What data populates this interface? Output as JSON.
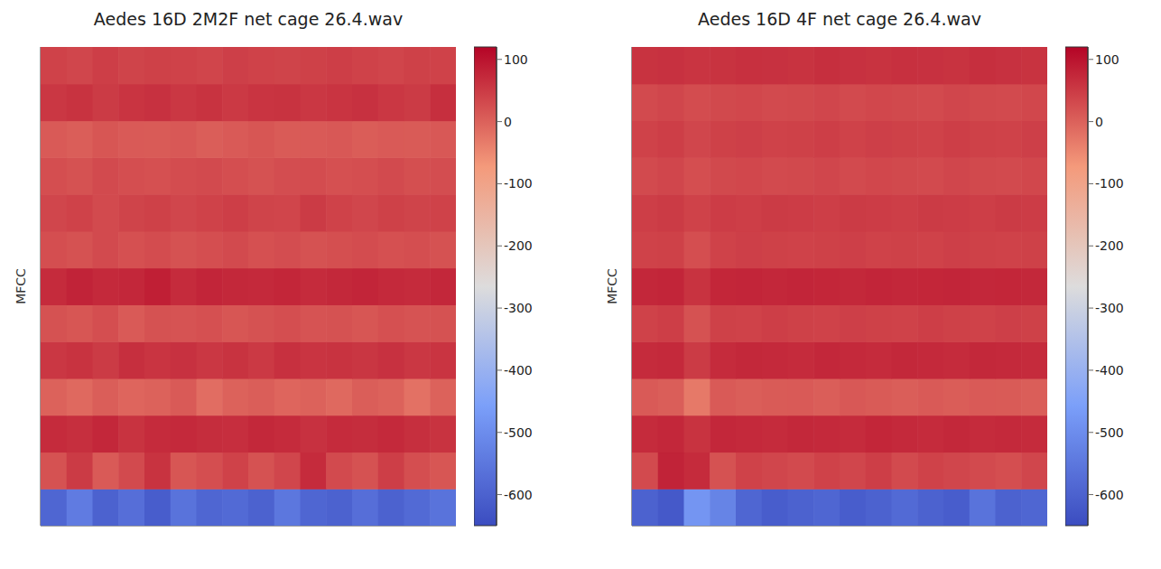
{
  "chart_data": [
    {
      "type": "heatmap",
      "title": "Aedes 16D 2M2F net cage 26.4.wav",
      "y_label": "MFCC",
      "tick_labels": false,
      "cells": [
        [
          -590,
          -540,
          -600,
          -570,
          -610,
          -560,
          -590,
          -580,
          -600,
          -550,
          -590,
          -600,
          -570,
          -600,
          -580,
          -560
        ],
        [
          20,
          50,
          10,
          30,
          60,
          15,
          25,
          40,
          20,
          35,
          70,
          30,
          20,
          45,
          25,
          15
        ],
        [
          70,
          65,
          75,
          60,
          70,
          72,
          68,
          66,
          74,
          70,
          62,
          70,
          68,
          72,
          65,
          60
        ],
        [
          0,
          -10,
          5,
          -5,
          0,
          10,
          -15,
          0,
          5,
          -5,
          0,
          -10,
          5,
          0,
          -20,
          0
        ],
        [
          55,
          60,
          50,
          65,
          58,
          62,
          55,
          60,
          52,
          64,
          58,
          60,
          56,
          62,
          55,
          58
        ],
        [
          20,
          15,
          25,
          10,
          20,
          18,
          22,
          15,
          20,
          25,
          18,
          20,
          15,
          22,
          18,
          20
        ],
        [
          70,
          80,
          72,
          75,
          85,
          70,
          78,
          74,
          72,
          76,
          70,
          74,
          78,
          72,
          70,
          75
        ],
        [
          25,
          20,
          30,
          22,
          28,
          20,
          25,
          30,
          22,
          26,
          20,
          24,
          28,
          22,
          25,
          20
        ],
        [
          35,
          40,
          30,
          38,
          42,
          35,
          40,
          45,
          38,
          36,
          50,
          40,
          35,
          42,
          38,
          40
        ],
        [
          25,
          20,
          30,
          25,
          22,
          28,
          30,
          25,
          20,
          26,
          28,
          22,
          25,
          30,
          24,
          26
        ],
        [
          10,
          5,
          15,
          10,
          8,
          12,
          5,
          10,
          15,
          8,
          10,
          12,
          6,
          10,
          8,
          12
        ],
        [
          55,
          60,
          50,
          58,
          62,
          55,
          60,
          52,
          58,
          60,
          55,
          58,
          62,
          55,
          50,
          65
        ],
        [
          40,
          35,
          45,
          38,
          42,
          40,
          36,
          44,
          40,
          38,
          42,
          45,
          40,
          36,
          42,
          40
        ]
      ],
      "colorbar": {
        "range": [
          -650,
          120
        ],
        "ticks": [
          100,
          0,
          -100,
          -200,
          -300,
          -400,
          -500,
          -600
        ]
      }
    },
    {
      "type": "heatmap",
      "title": "Aedes 16D 4F net cage 26.4.wav",
      "y_label": "MFCC",
      "tick_labels": false,
      "cells": [
        [
          -600,
          -620,
          -480,
          -520,
          -590,
          -610,
          -600,
          -590,
          -610,
          -600,
          -580,
          -600,
          -610,
          -560,
          -600,
          -590
        ],
        [
          30,
          80,
          70,
          20,
          40,
          35,
          30,
          40,
          35,
          45,
          30,
          40,
          35,
          30,
          25,
          35
        ],
        [
          70,
          75,
          60,
          75,
          72,
          70,
          74,
          72,
          70,
          76,
          72,
          70,
          74,
          70,
          72,
          70
        ],
        [
          10,
          5,
          -30,
          10,
          5,
          8,
          10,
          5,
          12,
          8,
          5,
          10,
          6,
          10,
          8,
          5
        ],
        [
          70,
          72,
          50,
          70,
          74,
          72,
          70,
          75,
          72,
          70,
          74,
          72,
          70,
          74,
          72,
          70
        ],
        [
          40,
          45,
          20,
          42,
          40,
          45,
          42,
          40,
          44,
          42,
          40,
          45,
          42,
          40,
          44,
          42
        ],
        [
          75,
          78,
          60,
          76,
          78,
          75,
          78,
          76,
          74,
          78,
          75,
          76,
          78,
          75,
          76,
          74
        ],
        [
          40,
          42,
          25,
          40,
          44,
          42,
          40,
          42,
          44,
          40,
          42,
          40,
          44,
          42,
          40,
          42
        ],
        [
          45,
          50,
          40,
          48,
          46,
          50,
          48,
          46,
          50,
          48,
          46,
          50,
          48,
          46,
          50,
          48
        ],
        [
          30,
          35,
          25,
          32,
          34,
          30,
          32,
          35,
          30,
          34,
          32,
          30,
          35,
          32,
          30,
          34
        ],
        [
          40,
          45,
          35,
          42,
          44,
          40,
          42,
          45,
          40,
          44,
          42,
          40,
          45,
          42,
          40,
          44
        ],
        [
          30,
          35,
          28,
          32,
          34,
          30,
          32,
          35,
          30,
          34,
          32,
          30,
          35,
          32,
          30,
          34
        ],
        [
          60,
          62,
          58,
          60,
          64,
          62,
          60,
          65,
          62,
          60,
          64,
          62,
          60,
          65,
          62,
          60
        ]
      ],
      "colorbar": {
        "range": [
          -650,
          120
        ],
        "ticks": [
          100,
          0,
          -100,
          -200,
          -300,
          -400,
          -500,
          -600
        ]
      }
    }
  ]
}
